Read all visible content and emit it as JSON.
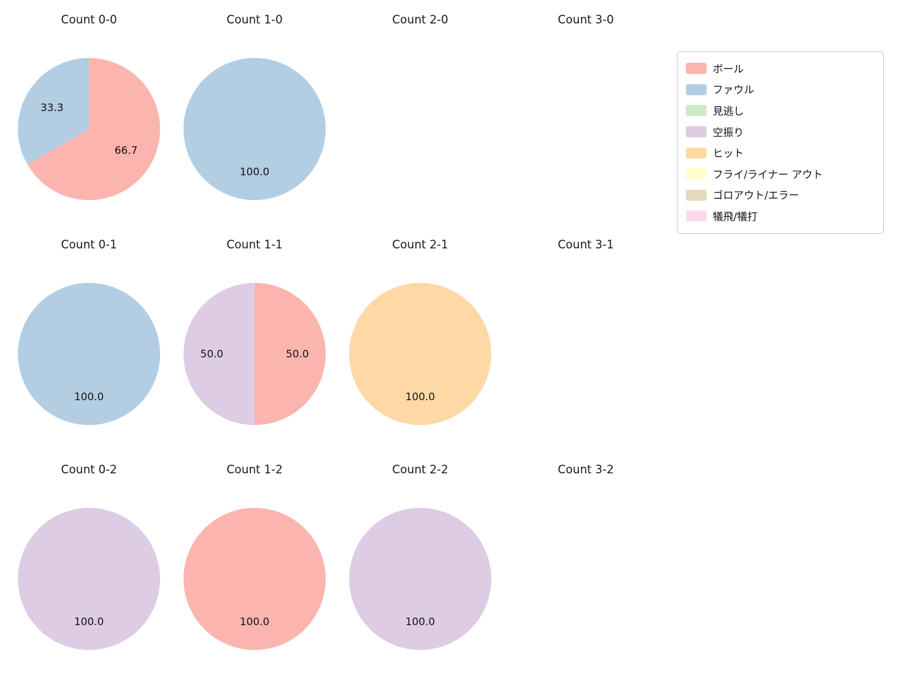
{
  "figure": {
    "background": "#ffffff",
    "text_color": "#1a1a1a"
  },
  "palette": {
    "ボール": "#fbb4ae",
    "ファウル": "#b3cde3",
    "見逃し": "#ccebc5",
    "空振り": "#decbe4",
    "ヒット": "#fed9a6",
    "フライ/ライナー アウト": "#ffffcc",
    "ゴロアウト/エラー": "#e5d8bd",
    "犠飛/犠打": "#fddaec"
  },
  "legend": {
    "position": "upper right",
    "labels": [
      "ボール",
      "ファウル",
      "見逃し",
      "空振り",
      "ヒット",
      "フライ/ライナー アウト",
      "ゴロアウト/エラー",
      "犠飛/犠打"
    ]
  },
  "chart_data": [
    {
      "type": "pie",
      "title": "Count 0-0",
      "start_angle": "top",
      "direction": "clockwise",
      "slices": [
        {
          "label": "ボール",
          "value": 66.7
        },
        {
          "label": "ファウル",
          "value": 33.3
        }
      ]
    },
    {
      "type": "pie",
      "title": "Count 1-0",
      "start_angle": "top",
      "direction": "clockwise",
      "slices": [
        {
          "label": "ファウル",
          "value": 100.0
        }
      ]
    },
    {
      "type": "pie",
      "title": "Count 2-0",
      "start_angle": "top",
      "direction": "clockwise",
      "slices": []
    },
    {
      "type": "pie",
      "title": "Count 3-0",
      "start_angle": "top",
      "direction": "clockwise",
      "slices": []
    },
    {
      "type": "pie",
      "title": "Count 0-1",
      "start_angle": "top",
      "direction": "clockwise",
      "slices": [
        {
          "label": "ファウル",
          "value": 100.0
        }
      ]
    },
    {
      "type": "pie",
      "title": "Count 1-1",
      "start_angle": "top",
      "direction": "clockwise",
      "slices": [
        {
          "label": "ボール",
          "value": 50.0
        },
        {
          "label": "空振り",
          "value": 50.0
        }
      ]
    },
    {
      "type": "pie",
      "title": "Count 2-1",
      "start_angle": "top",
      "direction": "clockwise",
      "slices": [
        {
          "label": "ヒット",
          "value": 100.0
        }
      ]
    },
    {
      "type": "pie",
      "title": "Count 3-1",
      "start_angle": "top",
      "direction": "clockwise",
      "slices": []
    },
    {
      "type": "pie",
      "title": "Count 0-2",
      "start_angle": "top",
      "direction": "clockwise",
      "slices": [
        {
          "label": "空振り",
          "value": 100.0
        }
      ]
    },
    {
      "type": "pie",
      "title": "Count 1-2",
      "start_angle": "top",
      "direction": "clockwise",
      "slices": [
        {
          "label": "ボール",
          "value": 100.0
        }
      ]
    },
    {
      "type": "pie",
      "title": "Count 2-2",
      "start_angle": "top",
      "direction": "clockwise",
      "slices": [
        {
          "label": "空振り",
          "value": 100.0
        }
      ]
    },
    {
      "type": "pie",
      "title": "Count 3-2",
      "start_angle": "top",
      "direction": "clockwise",
      "slices": []
    }
  ]
}
